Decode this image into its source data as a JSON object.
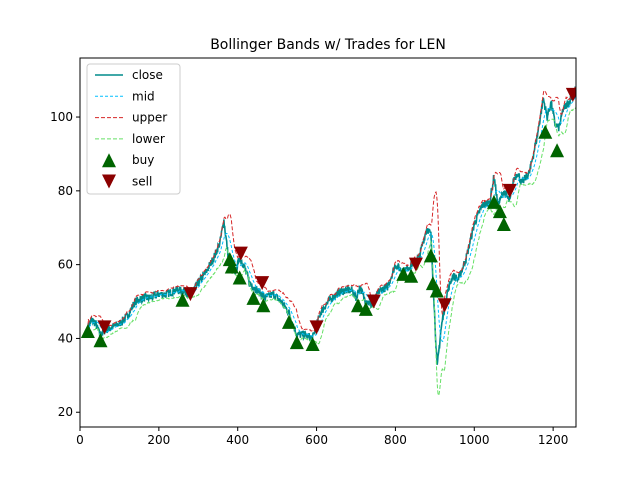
{
  "chart_data": {
    "type": "line",
    "title": "Bollinger Bands w/ Trades for LEN",
    "xlabel": "",
    "ylabel": "",
    "xlim": [
      0,
      1258
    ],
    "ylim": [
      16,
      116
    ],
    "xticks": [
      0,
      200,
      400,
      600,
      800,
      1000,
      1200
    ],
    "yticks": [
      20,
      40,
      60,
      80,
      100
    ],
    "grid": false,
    "legend_position": "top-left",
    "colors": {
      "close": "#008b8b",
      "mid": "#00bfff",
      "upper": "#d62728",
      "lower": "#66e066",
      "buy": "#006400",
      "sell": "#8b0000"
    },
    "legend": [
      {
        "key": "close",
        "label": "close"
      },
      {
        "key": "mid",
        "label": "mid"
      },
      {
        "key": "upper",
        "label": "upper"
      },
      {
        "key": "lower",
        "label": "lower"
      },
      {
        "key": "buy",
        "label": "buy"
      },
      {
        "key": "sell",
        "label": "sell"
      }
    ],
    "close_anchors": [
      [
        20,
        43
      ],
      [
        30,
        45
      ],
      [
        40,
        44
      ],
      [
        50,
        41
      ],
      [
        60,
        42
      ],
      [
        80,
        43
      ],
      [
        100,
        44
      ],
      [
        120,
        46
      ],
      [
        140,
        50
      ],
      [
        160,
        51
      ],
      [
        180,
        51
      ],
      [
        200,
        52
      ],
      [
        220,
        52
      ],
      [
        240,
        53
      ],
      [
        260,
        53
      ],
      [
        280,
        52
      ],
      [
        300,
        55
      ],
      [
        320,
        58
      ],
      [
        340,
        62
      ],
      [
        355,
        66
      ],
      [
        365,
        72
      ],
      [
        375,
        63
      ],
      [
        385,
        60
      ],
      [
        395,
        58
      ],
      [
        405,
        62
      ],
      [
        415,
        60
      ],
      [
        430,
        55
      ],
      [
        450,
        53
      ],
      [
        470,
        51
      ],
      [
        490,
        52
      ],
      [
        510,
        50
      ],
      [
        530,
        47
      ],
      [
        550,
        41
      ],
      [
        570,
        41
      ],
      [
        590,
        40
      ],
      [
        610,
        47
      ],
      [
        630,
        50
      ],
      [
        650,
        52
      ],
      [
        670,
        53
      ],
      [
        690,
        53
      ],
      [
        700,
        51
      ],
      [
        710,
        54
      ],
      [
        720,
        51
      ],
      [
        740,
        49
      ],
      [
        760,
        53
      ],
      [
        780,
        54
      ],
      [
        800,
        60
      ],
      [
        820,
        58
      ],
      [
        840,
        60
      ],
      [
        860,
        62
      ],
      [
        880,
        70
      ],
      [
        890,
        68
      ],
      [
        900,
        45
      ],
      [
        906,
        32
      ],
      [
        915,
        42
      ],
      [
        930,
        52
      ],
      [
        945,
        57
      ],
      [
        960,
        56
      ],
      [
        980,
        62
      ],
      [
        1000,
        71
      ],
      [
        1020,
        76
      ],
      [
        1040,
        77
      ],
      [
        1050,
        84
      ],
      [
        1060,
        76
      ],
      [
        1075,
        80
      ],
      [
        1090,
        77
      ],
      [
        1100,
        83
      ],
      [
        1110,
        85
      ],
      [
        1120,
        82
      ],
      [
        1140,
        85
      ],
      [
        1160,
        95
      ],
      [
        1175,
        105
      ],
      [
        1185,
        100
      ],
      [
        1195,
        104
      ],
      [
        1205,
        98
      ],
      [
        1215,
        97
      ],
      [
        1225,
        102
      ],
      [
        1240,
        104
      ],
      [
        1258,
        108
      ]
    ],
    "buy": [
      {
        "x": 20,
        "y": 42
      },
      {
        "x": 52,
        "y": 39.5
      },
      {
        "x": 260,
        "y": 50.5
      },
      {
        "x": 380,
        "y": 61.5
      },
      {
        "x": 385,
        "y": 59.5
      },
      {
        "x": 405,
        "y": 56.5
      },
      {
        "x": 440,
        "y": 51
      },
      {
        "x": 465,
        "y": 49
      },
      {
        "x": 530,
        "y": 44.5
      },
      {
        "x": 550,
        "y": 39
      },
      {
        "x": 590,
        "y": 38.5
      },
      {
        "x": 705,
        "y": 49
      },
      {
        "x": 725,
        "y": 48
      },
      {
        "x": 820,
        "y": 57.5
      },
      {
        "x": 840,
        "y": 57
      },
      {
        "x": 895,
        "y": 55
      },
      {
        "x": 890,
        "y": 62.5
      },
      {
        "x": 905,
        "y": 53
      },
      {
        "x": 1050,
        "y": 77
      },
      {
        "x": 1065,
        "y": 74.5
      },
      {
        "x": 1075,
        "y": 71
      },
      {
        "x": 1180,
        "y": 96
      },
      {
        "x": 1210,
        "y": 91
      }
    ],
    "sell": [
      {
        "x": 62,
        "y": 43
      },
      {
        "x": 280,
        "y": 52
      },
      {
        "x": 408,
        "y": 63
      },
      {
        "x": 462,
        "y": 55
      },
      {
        "x": 600,
        "y": 43
      },
      {
        "x": 745,
        "y": 50
      },
      {
        "x": 852,
        "y": 60
      },
      {
        "x": 925,
        "y": 49
      },
      {
        "x": 1090,
        "y": 80
      },
      {
        "x": 1250,
        "y": 106
      }
    ]
  }
}
